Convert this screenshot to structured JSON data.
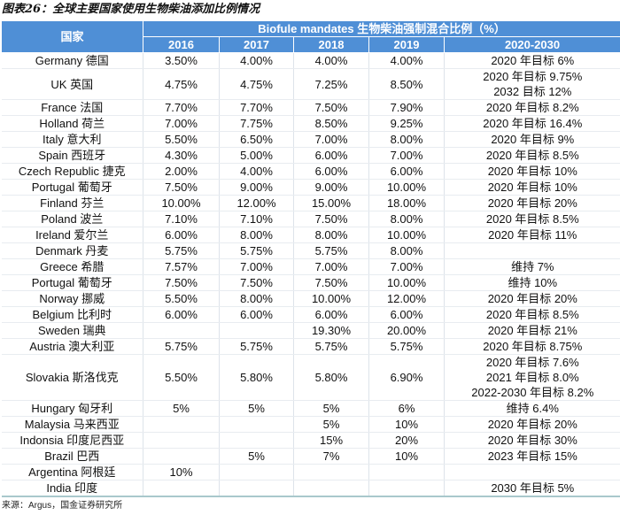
{
  "title": "图表26：全球主要国家使用生物柴油添加比例情况",
  "header": {
    "country": "国家",
    "group": "Biofule mandates 生物柴油强制混合比例（%）",
    "years": [
      "2016",
      "2017",
      "2018",
      "2019",
      "2020-2030"
    ]
  },
  "rows": [
    {
      "country": "Germany 德国",
      "v": [
        "3.50%",
        "4.00%",
        "4.00%",
        "4.00%"
      ],
      "target": [
        "2020 年目标 6%"
      ]
    },
    {
      "country": "UK 英国",
      "v": [
        "4.75%",
        "4.75%",
        "7.25%",
        "8.50%"
      ],
      "target": [
        "2020 年目标 9.75%",
        "2032 目标 12%"
      ]
    },
    {
      "country": "France 法国",
      "v": [
        "7.70%",
        "7.70%",
        "7.50%",
        "7.90%"
      ],
      "target": [
        "2020 年目标 8.2%"
      ]
    },
    {
      "country": "Holland 荷兰",
      "v": [
        "7.00%",
        "7.75%",
        "8.50%",
        "9.25%"
      ],
      "target": [
        "2020 年目标 16.4%"
      ]
    },
    {
      "country": "Italy 意大利",
      "v": [
        "5.50%",
        "6.50%",
        "7.00%",
        "8.00%"
      ],
      "target": [
        "2020 年目标 9%"
      ]
    },
    {
      "country": "Spain 西班牙",
      "v": [
        "4.30%",
        "5.00%",
        "6.00%",
        "7.00%"
      ],
      "target": [
        "2020 年目标 8.5%"
      ]
    },
    {
      "country": "Czech Republic 捷克",
      "v": [
        "2.00%",
        "4.00%",
        "6.00%",
        "6.00%"
      ],
      "target": [
        "2020 年目标 10%"
      ]
    },
    {
      "country": "Portugal 葡萄牙",
      "v": [
        "7.50%",
        "9.00%",
        "9.00%",
        "10.00%"
      ],
      "target": [
        "2020 年目标 10%"
      ]
    },
    {
      "country": "Finland 芬兰",
      "v": [
        "10.00%",
        "12.00%",
        "15.00%",
        "18.00%"
      ],
      "target": [
        "2020 年目标 20%"
      ]
    },
    {
      "country": "Poland 波兰",
      "v": [
        "7.10%",
        "7.10%",
        "7.50%",
        "8.00%"
      ],
      "target": [
        "2020 年目标 8.5%"
      ]
    },
    {
      "country": "Ireland 爱尔兰",
      "v": [
        "6.00%",
        "8.00%",
        "8.00%",
        "10.00%"
      ],
      "target": [
        "2020 年目标 11%"
      ]
    },
    {
      "country": "Denmark 丹麦",
      "v": [
        "5.75%",
        "5.75%",
        "5.75%",
        "8.00%"
      ],
      "target": [
        ""
      ]
    },
    {
      "country": "Greece 希腊",
      "v": [
        "7.57%",
        "7.00%",
        "7.00%",
        "7.00%"
      ],
      "target": [
        "维持 7%"
      ]
    },
    {
      "country": "Portugal 葡萄牙",
      "v": [
        "7.50%",
        "7.50%",
        "7.50%",
        "10.00%"
      ],
      "target": [
        "维持 10%"
      ]
    },
    {
      "country": "Norway 挪威",
      "v": [
        "5.50%",
        "8.00%",
        "10.00%",
        "12.00%"
      ],
      "target": [
        "2020 年目标 20%"
      ]
    },
    {
      "country": "Belgium 比利时",
      "v": [
        "6.00%",
        "6.00%",
        "6.00%",
        "6.00%"
      ],
      "target": [
        "2020 年目标 8.5%"
      ]
    },
    {
      "country": "Sweden 瑞典",
      "v": [
        "",
        "",
        "19.30%",
        "20.00%"
      ],
      "target": [
        "2020 年目标 21%"
      ]
    },
    {
      "country": "Austria 澳大利亚",
      "v": [
        "5.75%",
        "5.75%",
        "5.75%",
        "5.75%"
      ],
      "target": [
        "2020 年目标 8.75%"
      ]
    },
    {
      "country": "Slovakia 斯洛伐克",
      "v": [
        "5.50%",
        "5.80%",
        "5.80%",
        "6.90%"
      ],
      "target": [
        "2020 年目标 7.6%",
        "2021 年目标 8.0%",
        "2022-2030 年目标 8.2%"
      ]
    },
    {
      "country": "Hungary 匈牙利",
      "v": [
        "5%",
        "5%",
        "5%",
        "6%"
      ],
      "target": [
        "维持 6.4%"
      ]
    },
    {
      "country": "Malaysia 马来西亚",
      "v": [
        "",
        "",
        "5%",
        "10%"
      ],
      "target": [
        "2020 年目标 20%"
      ]
    },
    {
      "country": "Indonsia 印度尼西亚",
      "v": [
        "",
        "",
        "15%",
        "20%"
      ],
      "target": [
        "2020 年目标 30%"
      ]
    },
    {
      "country": "Brazil 巴西",
      "v": [
        "",
        "5%",
        "7%",
        "10%"
      ],
      "target": [
        "2023 年目标 15%"
      ]
    },
    {
      "country": "Argentina 阿根廷",
      "v": [
        "10%",
        "",
        "",
        ""
      ],
      "target": [
        ""
      ]
    },
    {
      "country": "India 印度",
      "v": [
        "",
        "",
        "",
        ""
      ],
      "target": [
        "2030 年目标 5%"
      ]
    }
  ],
  "source": "来源：Argus，国金证券研究所"
}
